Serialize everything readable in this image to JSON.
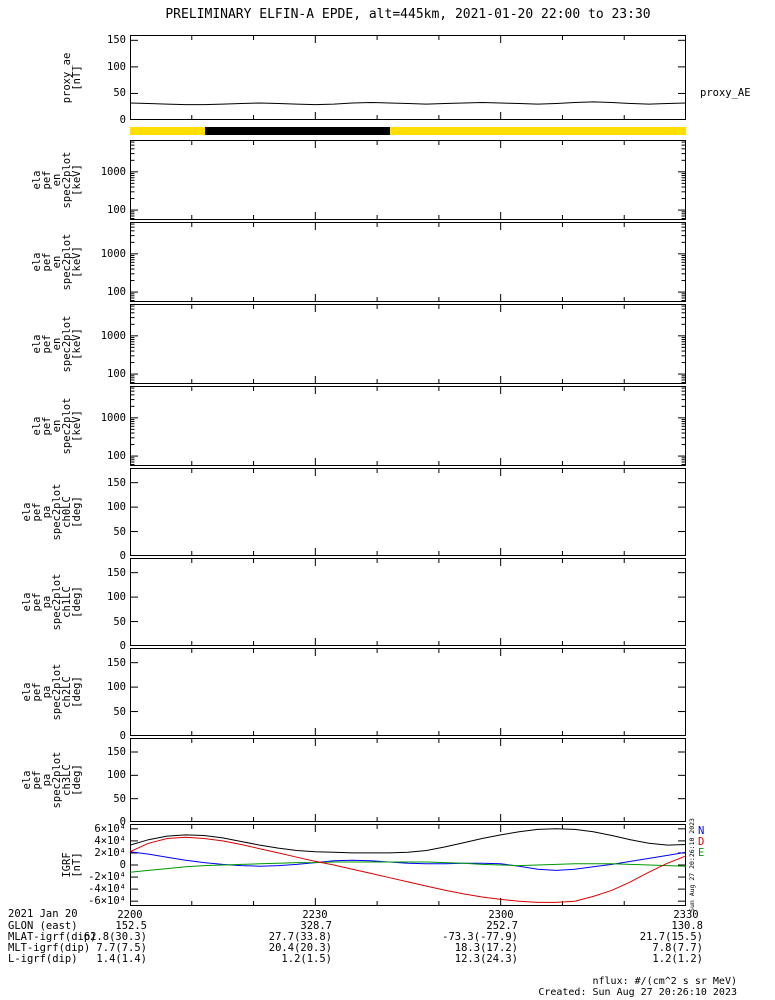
{
  "title": "PRELIMINARY ELFIN-A EPDE, alt=445km, 2021-01-20 22:00 to 23:30",
  "footer": {
    "units_note": "nflux: #/(cm^2 s sr MeV)",
    "created": "Created: Sun Aug 27 20:26:10 2023",
    "side_timestamp": "Sun Aug 27 20:26:10 2023"
  },
  "xaxis": {
    "date_label": "2021 Jan 20",
    "tick_labels": [
      "2200",
      "2230",
      "2300",
      "2330"
    ]
  },
  "annotations": {
    "rows": [
      {
        "label": "GLON (east)",
        "values": [
          "152.5",
          "328.7",
          "252.7",
          "130.8"
        ]
      },
      {
        "label": "MLAT-igrf(dip)",
        "values": [
          "62.8(30.3)",
          "27.7(33.8)",
          "-73.3(-77.9)",
          "21.7(15.5)"
        ]
      },
      {
        "label": "MLT-igrf(dip)",
        "values": [
          "7.7(7.5)",
          "20.4(20.3)",
          "18.3(17.2)",
          "7.8(7.7)"
        ]
      },
      {
        "label": "L-igrf(dip)",
        "values": [
          "1.4(1.4)",
          "1.2(1.5)",
          "12.3(24.3)",
          "1.2(1.2)"
        ]
      }
    ]
  },
  "chart_data": [
    {
      "id": "proxy_ae",
      "type": "line",
      "ylabel_lines": [
        "proxy_ae",
        "[nT]"
      ],
      "right_label": "proxy_AE",
      "ylim": [
        0,
        160
      ],
      "yticks": [
        0,
        50,
        100,
        150
      ],
      "xlim_hhmm": [
        "2200",
        "2330"
      ],
      "x_minutes": [
        0,
        3,
        6,
        9,
        12,
        15,
        18,
        21,
        24,
        27,
        30,
        33,
        36,
        39,
        42,
        45,
        48,
        51,
        54,
        57,
        60,
        63,
        66,
        69,
        72,
        75,
        78,
        81,
        84,
        87,
        90
      ],
      "series": [
        {
          "name": "proxy_AE",
          "color": "#000000",
          "values": [
            32,
            31,
            30,
            29,
            29,
            30,
            31,
            32,
            31,
            30,
            29,
            30,
            32,
            33,
            32,
            31,
            30,
            31,
            32,
            33,
            32,
            31,
            30,
            31,
            33,
            34,
            33,
            31,
            30,
            31,
            32
          ]
        }
      ]
    },
    {
      "id": "science_zone_bar",
      "type": "segment-bar",
      "segments": [
        {
          "start_min": 0,
          "end_min": 12.1,
          "color": "#ffdf00"
        },
        {
          "start_min": 12.1,
          "end_min": 42.1,
          "color": "#000000"
        },
        {
          "start_min": 42.1,
          "end_min": 90,
          "color": "#ffdf00"
        }
      ]
    },
    {
      "id": "en_spec_ch0",
      "type": "spectrogram",
      "empty": true,
      "yscale": "log",
      "ylabel_lines": [
        "ela",
        "pef",
        "en",
        "spec2plot",
        "[keV]"
      ],
      "ylim": [
        55,
        6800
      ],
      "yticks": [
        1000,
        100
      ],
      "ytick_labels": [
        "1000",
        "100"
      ]
    },
    {
      "id": "en_spec_ch1",
      "type": "spectrogram",
      "empty": true,
      "yscale": "log",
      "ylabel_lines": [
        "ela",
        "pef",
        "en",
        "spec2plot",
        "[keV]"
      ],
      "ylim": [
        55,
        6800
      ],
      "yticks": [
        1000,
        100
      ],
      "ytick_labels": [
        "1000",
        "100"
      ]
    },
    {
      "id": "en_spec_ch2",
      "type": "spectrogram",
      "empty": true,
      "yscale": "log",
      "ylabel_lines": [
        "ela",
        "pef",
        "en",
        "spec2plot",
        "[keV]"
      ],
      "ylim": [
        55,
        6800
      ],
      "yticks": [
        1000,
        100
      ],
      "ytick_labels": [
        "1000",
        "100"
      ]
    },
    {
      "id": "en_spec_ch3",
      "type": "spectrogram",
      "empty": true,
      "yscale": "log",
      "ylabel_lines": [
        "ela",
        "pef",
        "en",
        "spec2plot",
        "[keV]"
      ],
      "ylim": [
        55,
        6800
      ],
      "yticks": [
        1000,
        100
      ],
      "ytick_labels": [
        "1000",
        "100"
      ]
    },
    {
      "id": "pa_spec_ch0",
      "type": "spectrogram",
      "empty": true,
      "ylabel_lines": [
        "ela",
        "pef",
        "pa",
        "spec2plot",
        "ch0LC",
        "[deg]"
      ],
      "ylim": [
        0,
        180
      ],
      "yticks": [
        0,
        50,
        100,
        150
      ]
    },
    {
      "id": "pa_spec_ch1",
      "type": "spectrogram",
      "empty": true,
      "ylabel_lines": [
        "ela",
        "pef",
        "pa",
        "spec2plot",
        "ch1LC",
        "[deg]"
      ],
      "ylim": [
        0,
        180
      ],
      "yticks": [
        0,
        50,
        100,
        150
      ]
    },
    {
      "id": "pa_spec_ch2",
      "type": "spectrogram",
      "empty": true,
      "ylabel_lines": [
        "ela",
        "pef",
        "pa",
        "spec2plot",
        "ch2LC",
        "[deg]"
      ],
      "ylim": [
        0,
        180
      ],
      "yticks": [
        0,
        50,
        100,
        150
      ]
    },
    {
      "id": "pa_spec_ch3",
      "type": "spectrogram",
      "empty": true,
      "ylabel_lines": [
        "ela",
        "pef",
        "pa",
        "spec2plot",
        "ch3LC",
        "[deg]"
      ],
      "ylim": [
        0,
        180
      ],
      "yticks": [
        0,
        50,
        100,
        150
      ]
    },
    {
      "id": "igrf",
      "type": "line",
      "ylabel_lines": [
        "IGRF",
        "[nT]"
      ],
      "ylim": [
        -68000,
        68000
      ],
      "yticks": [
        60000,
        40000,
        20000,
        0,
        -20000,
        -40000,
        -60000
      ],
      "ytick_labels": [
        "6×10⁴",
        "4×10⁴",
        "2×10⁴",
        "0",
        "-2×10⁴",
        "-4×10⁴",
        "-6×10⁴"
      ],
      "legend": [
        {
          "label": "N",
          "color": "#0000ff"
        },
        {
          "label": "D",
          "color": "#dd0000"
        },
        {
          "label": "E",
          "color": "#009900"
        }
      ],
      "x_minutes": [
        0,
        3,
        6,
        9,
        12,
        15,
        18,
        21,
        24,
        27,
        30,
        33,
        36,
        39,
        42,
        45,
        48,
        51,
        54,
        57,
        60,
        63,
        66,
        69,
        72,
        75,
        78,
        81,
        84,
        87,
        90
      ],
      "series": [
        {
          "name": "Btotal",
          "color": "#000000",
          "values": [
            33000,
            42000,
            48000,
            50000,
            49000,
            45000,
            39000,
            33000,
            28000,
            24000,
            22000,
            21000,
            20000,
            20000,
            20000,
            21000,
            24000,
            30000,
            37000,
            44000,
            50000,
            55000,
            59000,
            60000,
            59000,
            55000,
            49000,
            42000,
            36000,
            33000,
            34000
          ]
        },
        {
          "name": "N",
          "color": "#0000ff",
          "values": [
            22000,
            18000,
            13000,
            8000,
            4000,
            1000,
            -1000,
            -2000,
            -1000,
            1000,
            4000,
            7000,
            8000,
            7000,
            5000,
            3000,
            2000,
            2000,
            3000,
            3000,
            2000,
            -2000,
            -7000,
            -9000,
            -7000,
            -3000,
            1000,
            6000,
            11000,
            16000,
            21000
          ]
        },
        {
          "name": "E",
          "color": "#009900",
          "values": [
            -12000,
            -9000,
            -6000,
            -3000,
            -1000,
            0,
            1000,
            2000,
            3000,
            4000,
            4000,
            5000,
            5000,
            5000,
            5000,
            5000,
            5000,
            4000,
            3000,
            1000,
            0,
            -1000,
            0,
            1000,
            2000,
            2000,
            2000,
            1000,
            0,
            -1000,
            -2000
          ]
        },
        {
          "name": "D",
          "color": "#dd0000",
          "values": [
            22000,
            36000,
            44000,
            46000,
            44000,
            40000,
            34000,
            27000,
            20000,
            13000,
            6000,
            0,
            -7000,
            -14000,
            -21000,
            -28000,
            -35000,
            -42000,
            -48000,
            -53000,
            -57000,
            -60000,
            -62000,
            -62000,
            -60000,
            -52000,
            -42000,
            -28000,
            -12000,
            3000,
            15000
          ]
        }
      ]
    }
  ]
}
